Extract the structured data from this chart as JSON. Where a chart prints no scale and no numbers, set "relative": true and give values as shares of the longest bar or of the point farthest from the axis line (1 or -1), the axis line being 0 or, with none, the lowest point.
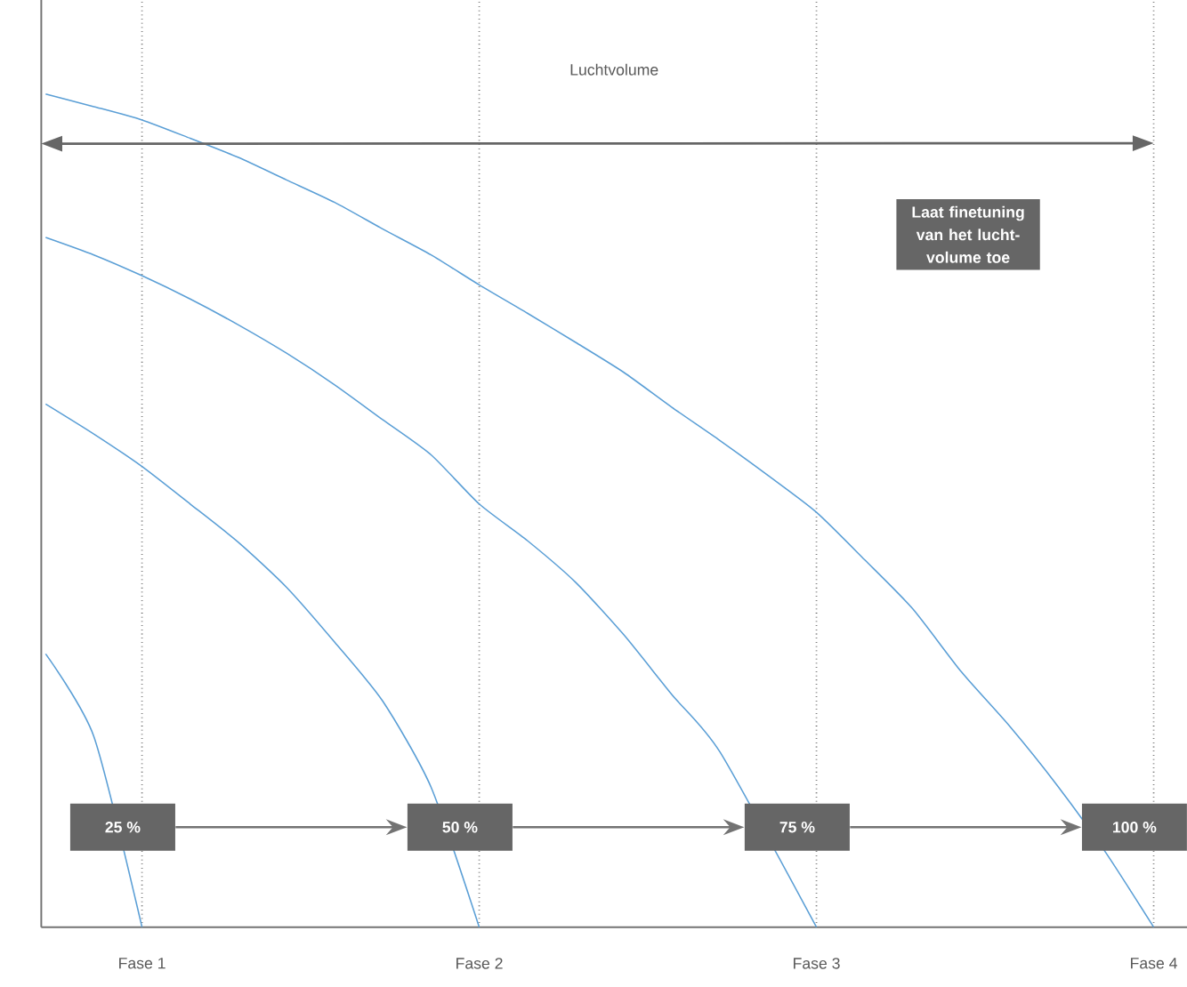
{
  "chart_data": {
    "type": "line",
    "relative": true,
    "categories": [
      null,
      null,
      "Fase 1",
      null,
      null,
      null,
      null,
      null,
      null,
      "Fase 2",
      null,
      null,
      null,
      null,
      null,
      null,
      "Fase 3",
      null,
      null,
      null,
      null,
      null,
      null,
      "Fase 4"
    ],
    "series": [
      {
        "color": "#5b9fd6",
        "values": [
          0.328,
          0.229,
          0,
          null,
          null,
          null,
          null,
          null,
          null,
          null,
          null,
          null,
          null,
          null,
          null,
          null,
          null,
          null,
          null,
          null,
          null,
          null,
          null,
          null
        ]
      },
      {
        "color": "#5b9fd6",
        "values": [
          0.628,
          0.592,
          0.553,
          0.508,
          0.462,
          0.408,
          0.342,
          0.271,
          0.168,
          0,
          null,
          null,
          null,
          null,
          null,
          null,
          null,
          null,
          null,
          null,
          null,
          null,
          null,
          null
        ]
      },
      {
        "color": "#5b9fd6",
        "values": [
          0.828,
          0.807,
          0.782,
          0.754,
          0.723,
          0.689,
          0.651,
          0.609,
          0.567,
          0.508,
          0.464,
          0.414,
          0.351,
          0.279,
          0.21,
          null,
          0,
          null,
          null,
          null,
          null,
          null,
          null,
          null
        ]
      },
      {
        "color": "#5b9fd6",
        "values": [
          1,
          0.985,
          0.969,
          0.947,
          0.924,
          0.897,
          0.87,
          0.838,
          0.807,
          0.771,
          0.737,
          0.702,
          0.666,
          0.624,
          0.584,
          0.542,
          0.498,
          0.441,
          0.382,
          0.307,
          0.242,
          0.17,
          0.09,
          0
        ]
      }
    ],
    "annotations": [
      "Luchtvolume",
      "Laat finetuning van het lucht-volume toe",
      "25 %",
      "50 %",
      "75 %",
      "100 %"
    ],
    "grid": "x",
    "marker": "none",
    "line_style": "solid"
  }
}
